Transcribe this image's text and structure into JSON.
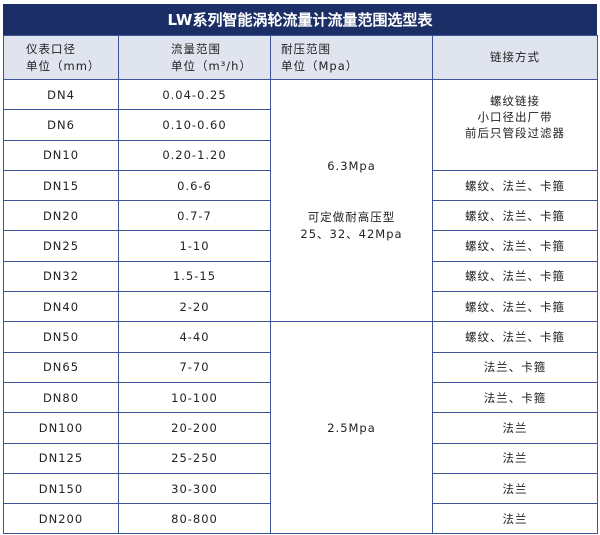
{
  "title": "LW系列智能涡轮流量计流量范围选型表",
  "headers": {
    "diameter": [
      "仪表口径",
      "单位（mm）"
    ],
    "flow": [
      "流量范围",
      "单位（m³/h）"
    ],
    "pressure": [
      "耐压范围",
      "单位（Mpa）"
    ],
    "connection": "链接方式"
  },
  "rows": [
    {
      "dn": "DN4",
      "flow": "0.04-0.25"
    },
    {
      "dn": "DN6",
      "flow": "0.10-0.60"
    },
    {
      "dn": "DN10",
      "flow": "0.20-1.20"
    },
    {
      "dn": "DN15",
      "flow": "0.6-6",
      "conn": "螺纹、法兰、卡箍"
    },
    {
      "dn": "DN20",
      "flow": "0.7-7",
      "conn": "螺纹、法兰、卡箍"
    },
    {
      "dn": "DN25",
      "flow": "1-10",
      "conn": "螺纹、法兰、卡箍"
    },
    {
      "dn": "DN32",
      "flow": "1.5-15",
      "conn": "螺纹、法兰、卡箍"
    },
    {
      "dn": "DN40",
      "flow": "2-20",
      "conn": "螺纹、法兰、卡箍"
    },
    {
      "dn": "DN50",
      "flow": "4-40",
      "conn": "螺纹、法兰、卡箍"
    },
    {
      "dn": "DN65",
      "flow": "7-70",
      "conn": "法兰、卡箍"
    },
    {
      "dn": "DN80",
      "flow": "10-100",
      "conn": "法兰、卡箍"
    },
    {
      "dn": "DN100",
      "flow": "20-200",
      "conn": "法兰"
    },
    {
      "dn": "DN125",
      "flow": "25-250",
      "conn": "法兰"
    },
    {
      "dn": "DN150",
      "flow": "30-300",
      "conn": "法兰"
    },
    {
      "dn": "DN200",
      "flow": "80-800",
      "conn": "法兰"
    }
  ],
  "pressure_groups": {
    "high": {
      "value": "6.3Mpa",
      "note": [
        "可定做耐高压型",
        "25、32、42Mpa"
      ]
    },
    "low": {
      "value": "2.5Mpa"
    }
  },
  "small_connection": [
    "螺纹链接",
    "小口径出厂带",
    "前后只管段过滤器"
  ]
}
